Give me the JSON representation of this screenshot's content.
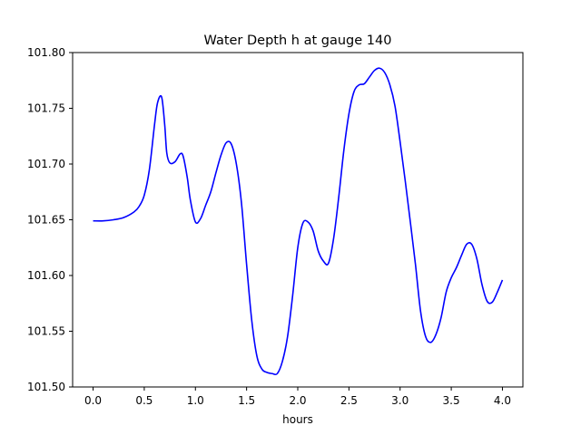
{
  "chart_data": {
    "type": "line",
    "title": "Water Depth h at gauge 140",
    "xlabel": "hours",
    "ylabel": "",
    "xlim": [
      -0.2,
      4.2
    ],
    "ylim": [
      101.5,
      101.8
    ],
    "grid": false,
    "legend": "none",
    "x_ticks": [
      0.0,
      0.5,
      1.0,
      1.5,
      2.0,
      2.5,
      3.0,
      3.5,
      4.0
    ],
    "x_tick_labels": [
      "0.0",
      "0.5",
      "1.0",
      "1.5",
      "2.0",
      "2.5",
      "3.0",
      "3.5",
      "4.0"
    ],
    "y_ticks": [
      101.5,
      101.55,
      101.6,
      101.65,
      101.7,
      101.75,
      101.8
    ],
    "y_tick_labels": [
      "101.50",
      "101.55",
      "101.60",
      "101.65",
      "101.70",
      "101.75",
      "101.80"
    ],
    "series": [
      {
        "color": "#0000ff",
        "x": [
          0.0,
          0.1,
          0.2,
          0.3,
          0.4,
          0.45,
          0.5,
          0.55,
          0.6,
          0.63,
          0.67,
          0.7,
          0.72,
          0.75,
          0.8,
          0.85,
          0.88,
          0.92,
          0.95,
          1.0,
          1.05,
          1.1,
          1.15,
          1.2,
          1.25,
          1.3,
          1.35,
          1.4,
          1.45,
          1.5,
          1.55,
          1.6,
          1.65,
          1.7,
          1.75,
          1.8,
          1.85,
          1.9,
          1.95,
          2.0,
          2.05,
          2.1,
          2.15,
          2.2,
          2.25,
          2.3,
          2.35,
          2.4,
          2.45,
          2.5,
          2.55,
          2.6,
          2.65,
          2.7,
          2.75,
          2.8,
          2.85,
          2.9,
          2.95,
          3.0,
          3.05,
          3.1,
          3.15,
          3.2,
          3.25,
          3.3,
          3.35,
          3.4,
          3.45,
          3.5,
          3.55,
          3.6,
          3.65,
          3.7,
          3.75,
          3.8,
          3.85,
          3.9,
          3.95,
          4.0
        ],
        "values": [
          101.649,
          101.649,
          101.65,
          101.652,
          101.657,
          101.662,
          101.672,
          101.695,
          101.735,
          101.755,
          101.76,
          101.735,
          101.71,
          101.701,
          101.702,
          101.709,
          101.707,
          101.688,
          101.668,
          101.648,
          101.651,
          101.663,
          101.675,
          101.692,
          101.708,
          101.719,
          101.718,
          101.7,
          101.665,
          101.61,
          101.56,
          101.528,
          101.516,
          101.513,
          101.512,
          101.512,
          101.523,
          101.545,
          101.582,
          101.625,
          101.647,
          101.648,
          101.64,
          101.622,
          101.613,
          101.611,
          101.633,
          101.67,
          101.712,
          101.745,
          101.765,
          101.771,
          101.772,
          101.778,
          101.784,
          101.786,
          101.782,
          101.771,
          101.752,
          101.72,
          101.685,
          101.648,
          101.61,
          101.568,
          101.545,
          101.54,
          101.547,
          101.562,
          101.585,
          101.598,
          101.607,
          101.618,
          101.628,
          101.628,
          101.615,
          101.592,
          101.577,
          101.576,
          101.585,
          101.596
        ]
      }
    ]
  }
}
